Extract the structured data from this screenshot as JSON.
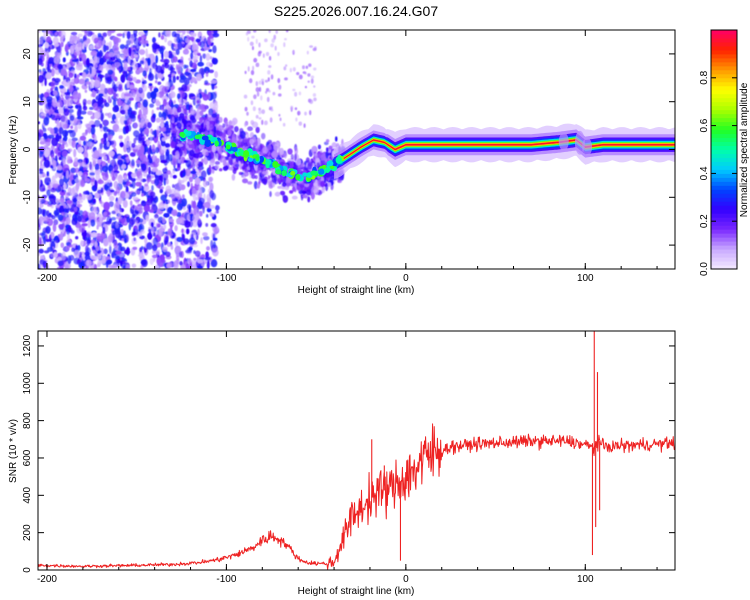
{
  "title": "S225.2026.007.16.24.G07",
  "chart_data": [
    {
      "type": "heatmap",
      "title": "",
      "xlabel": "Height of straight line (km)",
      "ylabel": "Frequency (Hz)",
      "xlim": [
        -205,
        150
      ],
      "ylim": [
        -25,
        25
      ],
      "xticks": [
        -200,
        -100,
        0,
        100
      ],
      "xtick_labels": [
        "-200",
        "-100",
        "0",
        "100"
      ],
      "yticks": [
        -20,
        -10,
        0,
        10,
        20
      ],
      "ytick_labels": [
        "-20",
        "-10",
        "0",
        "10",
        "20"
      ],
      "ridge": {
        "x": [
          -125,
          -115,
          -105,
          -95,
          -85,
          -75,
          -65,
          -55,
          -45,
          -35,
          -25,
          -18,
          -12,
          -6,
          0,
          10,
          25,
          45,
          70,
          85,
          95,
          100,
          110,
          150
        ],
        "y": [
          3,
          2.5,
          1.5,
          0,
          -1.5,
          -3,
          -5,
          -6,
          -4,
          -2,
          0.5,
          2,
          1.5,
          0,
          1,
          1,
          1,
          1,
          1,
          1.5,
          2,
          0.5,
          1,
          1
        ]
      },
      "colorbar": {
        "label": "Normalized spectral amplitude",
        "range": [
          0,
          1
        ],
        "ticks": [
          0.0,
          0.2,
          0.4,
          0.6,
          0.8
        ],
        "tick_labels": [
          "0.0",
          "0.2",
          "0.4",
          "0.6",
          "0.8"
        ],
        "colors": [
          "#f4eaff",
          "#c9a9ff",
          "#7a28ff",
          "#3300ff",
          "#0044ff",
          "#00ccff",
          "#00ffaa",
          "#22ff22",
          "#aaff00",
          "#ffff00",
          "#ff9900",
          "#ff2200",
          "#ff0066"
        ]
      }
    },
    {
      "type": "line",
      "title": "",
      "xlabel": "Height of straight line (km)",
      "ylabel": "SNR (10 * v/v)",
      "xlim": [
        -205,
        150
      ],
      "ylim": [
        0,
        1280
      ],
      "xticks": [
        -200,
        -100,
        0,
        100
      ],
      "xtick_labels": [
        "-200",
        "-100",
        "0",
        "100"
      ],
      "yticks": [
        0,
        200,
        400,
        600,
        800,
        1000,
        1200
      ],
      "ytick_labels": [
        "0",
        "200",
        "400",
        "600",
        "800",
        "1000",
        "1200"
      ],
      "color": "#ee2222",
      "series": [
        {
          "name": "SNR",
          "x": [
            -205,
            -180,
            -150,
            -130,
            -115,
            -105,
            -95,
            -85,
            -80,
            -75,
            -70,
            -65,
            -60,
            -55,
            -50,
            -45,
            -40,
            -37,
            -33,
            -30,
            -25,
            -20,
            -15,
            -10,
            -5,
            0,
            5,
            10,
            15,
            20,
            25,
            30,
            40,
            50,
            60,
            70,
            80,
            90,
            95,
            100,
            103,
            105,
            106,
            108,
            110,
            120,
            130,
            140,
            150
          ],
          "y": [
            25,
            20,
            25,
            30,
            40,
            55,
            80,
            120,
            160,
            180,
            165,
            120,
            60,
            40,
            35,
            35,
            40,
            120,
            220,
            280,
            330,
            380,
            420,
            430,
            460,
            500,
            540,
            590,
            620,
            640,
            660,
            665,
            675,
            680,
            685,
            690,
            690,
            690,
            680,
            670,
            660,
            650,
            680,
            690,
            660,
            665,
            670,
            675,
            680
          ]
        }
      ],
      "spikes": [
        {
          "x": -19,
          "y": 700
        },
        {
          "x": -12,
          "y": 560
        },
        {
          "x": -3,
          "y": 50
        },
        {
          "x": 104,
          "y": 80
        },
        {
          "x": 105,
          "y": 1280
        },
        {
          "x": 105.8,
          "y": 230
        },
        {
          "x": 106.8,
          "y": 1060
        },
        {
          "x": 108,
          "y": 320
        }
      ]
    }
  ]
}
